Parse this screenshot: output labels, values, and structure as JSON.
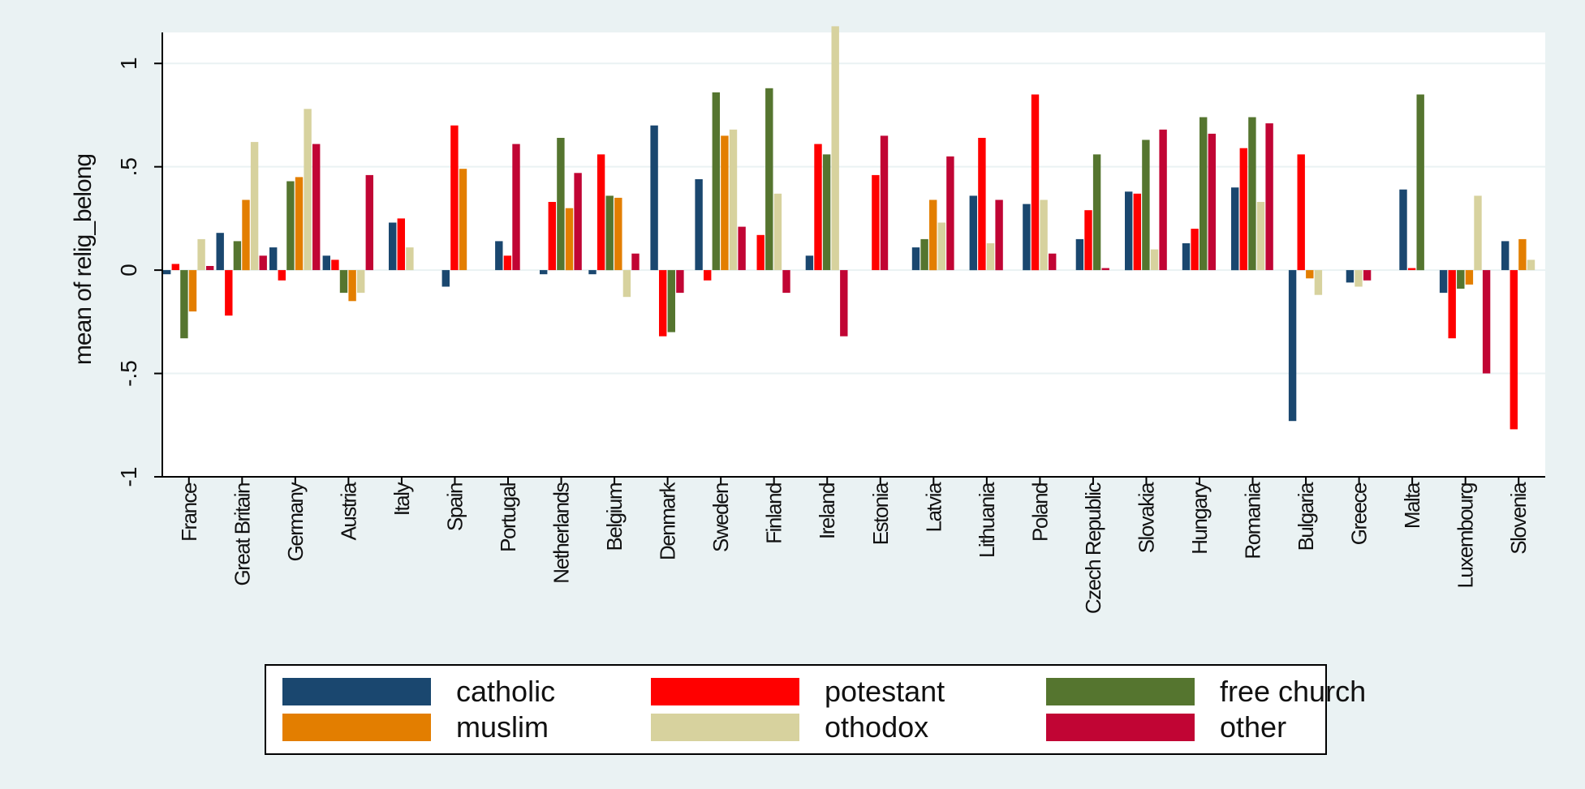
{
  "chart_data": {
    "type": "bar",
    "ylabel": "mean of relig_belong",
    "xlabel": "",
    "ylim": [
      -1,
      1.15
    ],
    "yticks": [
      -1,
      -0.5,
      0,
      0.5,
      1
    ],
    "ytick_labels": [
      "-1",
      "-.5",
      "0",
      ".5",
      "1"
    ],
    "grid": true,
    "legend_position": "bottom",
    "categories": [
      "France",
      "Great Britain",
      "Germany",
      "Austria",
      "Italy",
      "Spain",
      "Portugal",
      "Netherlands",
      "Belgium",
      "Denmark",
      "Sweden",
      "Finland",
      "Ireland",
      "Estonia",
      "Latvia",
      "Lithuania",
      "Poland",
      "Czech Republic",
      "Slovakia",
      "Hungary",
      "Romania",
      "Bulgaria",
      "Greece",
      "Malta",
      "Luxembourg",
      "Slovenia"
    ],
    "series": [
      {
        "name": "catholic",
        "color": "#1a476f",
        "values": [
          -0.02,
          0.18,
          0.11,
          0.07,
          0.23,
          -0.08,
          0.14,
          -0.02,
          -0.02,
          0.7,
          0.44,
          null,
          0.07,
          null,
          0.11,
          0.36,
          0.32,
          0.15,
          0.38,
          0.13,
          0.4,
          -0.73,
          -0.06,
          0.39,
          -0.11,
          0.14
        ]
      },
      {
        "name": "potestant",
        "color": "#ff0000",
        "values": [
          0.03,
          -0.22,
          -0.05,
          0.05,
          0.25,
          0.7,
          0.07,
          0.33,
          0.56,
          -0.32,
          -0.05,
          0.17,
          0.61,
          0.46,
          null,
          0.64,
          0.85,
          0.29,
          0.37,
          0.2,
          0.59,
          0.56,
          null,
          0.01,
          -0.33,
          -0.77
        ]
      },
      {
        "name": "free church",
        "color": "#55752f",
        "values": [
          -0.33,
          0.14,
          0.43,
          -0.11,
          null,
          null,
          null,
          0.64,
          0.36,
          -0.3,
          0.86,
          0.88,
          0.56,
          null,
          0.15,
          null,
          null,
          0.56,
          0.63,
          0.74,
          0.74,
          null,
          null,
          0.85,
          -0.09,
          null
        ]
      },
      {
        "name": "muslim",
        "color": "#e37e00",
        "values": [
          -0.2,
          0.34,
          0.45,
          -0.15,
          null,
          0.49,
          null,
          0.3,
          0.35,
          null,
          0.65,
          null,
          null,
          null,
          0.34,
          null,
          null,
          null,
          null,
          null,
          null,
          -0.04,
          null,
          null,
          -0.07,
          0.15
        ]
      },
      {
        "name": "othodox",
        "color": "#d7d29e",
        "values": [
          0.15,
          0.62,
          0.78,
          -0.11,
          0.11,
          null,
          null,
          null,
          -0.13,
          null,
          0.68,
          0.37,
          1.18,
          null,
          0.23,
          0.13,
          0.34,
          null,
          0.1,
          null,
          0.33,
          -0.12,
          -0.08,
          null,
          0.36,
          0.05
        ]
      },
      {
        "name": "other",
        "color": "#c10534",
        "values": [
          0.02,
          0.07,
          0.61,
          0.46,
          null,
          null,
          0.61,
          0.47,
          0.08,
          -0.11,
          0.21,
          -0.11,
          -0.32,
          0.65,
          0.55,
          0.34,
          0.08,
          0.01,
          0.68,
          0.66,
          0.71,
          null,
          -0.05,
          null,
          -0.5,
          null
        ]
      }
    ]
  },
  "legend": {
    "items": [
      {
        "label": "catholic",
        "color": "#1a476f"
      },
      {
        "label": "potestant",
        "color": "#ff0000"
      },
      {
        "label": "free church",
        "color": "#55752f"
      },
      {
        "label": "muslim",
        "color": "#e37e00"
      },
      {
        "label": "othodox",
        "color": "#d7d29e"
      },
      {
        "label": "other",
        "color": "#c10534"
      }
    ]
  },
  "colors": {
    "background": "#eaf2f3",
    "plot_area": "#ffffff",
    "grid": "#eaf2f3"
  }
}
